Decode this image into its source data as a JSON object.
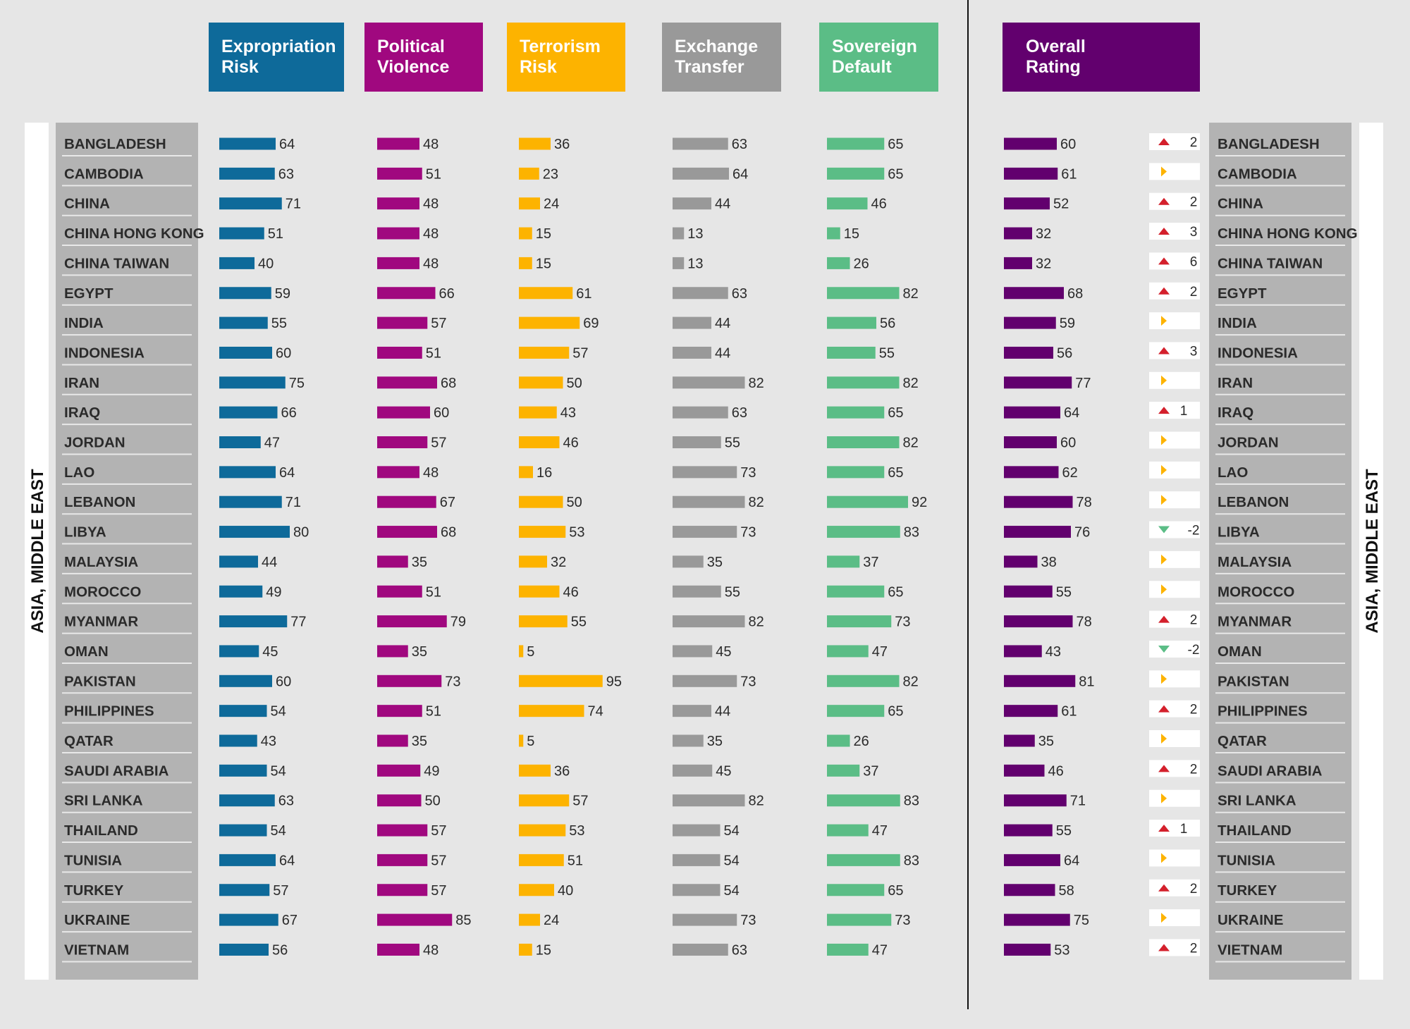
{
  "chart_data": {
    "type": "bar",
    "region_label": "ASIA, MIDDLE EAST",
    "categories": [
      "BANGLADESH",
      "CAMBODIA",
      "CHINA",
      "CHINA HONG KONG",
      "CHINA TAIWAN",
      "EGYPT",
      "INDIA",
      "INDONESIA",
      "IRAN",
      "IRAQ",
      "JORDAN",
      "LAO",
      "LEBANON",
      "LIBYA",
      "MALAYSIA",
      "MOROCCO",
      "MYANMAR",
      "OMAN",
      "PAKISTAN",
      "PHILIPPINES",
      "QATAR",
      "SAUDI ARABIA",
      "SRI LANKA",
      "THAILAND",
      "TUNISIA",
      "TURKEY",
      "UKRAINE",
      "VIETNAM"
    ],
    "series": [
      {
        "name": "Expropriation Risk",
        "header": [
          "Expropriation",
          "Risk"
        ],
        "color": "#0e6a9a",
        "header_text": "#ffffff",
        "values": [
          64,
          63,
          71,
          51,
          40,
          59,
          55,
          60,
          75,
          66,
          47,
          64,
          71,
          80,
          44,
          49,
          77,
          45,
          60,
          54,
          43,
          54,
          63,
          54,
          64,
          57,
          67,
          56
        ]
      },
      {
        "name": "Political Violence",
        "header": [
          "Political",
          "Violence"
        ],
        "color": "#a0087f",
        "header_text": "#ffffff",
        "values": [
          48,
          51,
          48,
          48,
          48,
          66,
          57,
          51,
          68,
          60,
          57,
          48,
          67,
          68,
          35,
          51,
          79,
          35,
          73,
          51,
          35,
          49,
          50,
          57,
          57,
          57,
          85,
          48
        ]
      },
      {
        "name": "Terrorism Risk",
        "header": [
          "Terrorism",
          "Risk"
        ],
        "color": "#fdb300",
        "header_text": "#111111",
        "values": [
          36,
          23,
          24,
          15,
          15,
          61,
          69,
          57,
          50,
          43,
          46,
          16,
          50,
          53,
          32,
          46,
          55,
          5,
          95,
          74,
          5,
          36,
          57,
          53,
          51,
          40,
          24,
          15
        ]
      },
      {
        "name": "Exchange Transfer",
        "header": [
          "Exchange",
          "Transfer"
        ],
        "color": "#999999",
        "header_text": "#ffffff",
        "values": [
          63,
          64,
          44,
          13,
          13,
          63,
          44,
          44,
          82,
          63,
          55,
          73,
          82,
          73,
          35,
          55,
          82,
          45,
          73,
          44,
          35,
          45,
          82,
          54,
          54,
          54,
          73,
          63
        ]
      },
      {
        "name": "Sovereign Default",
        "header": [
          "Sovereign",
          "Default"
        ],
        "color": "#5bbd86",
        "header_text": "#111111",
        "values": [
          65,
          65,
          46,
          15,
          26,
          82,
          56,
          55,
          82,
          65,
          82,
          65,
          92,
          83,
          37,
          65,
          73,
          47,
          82,
          65,
          26,
          37,
          83,
          47,
          83,
          65,
          73,
          47
        ]
      },
      {
        "name": "Overall Rating",
        "header": [
          "Overall",
          "Rating"
        ],
        "color": "#62006e",
        "header_text": "#ffffff",
        "values": [
          60,
          61,
          52,
          32,
          32,
          68,
          59,
          56,
          77,
          64,
          60,
          62,
          78,
          76,
          38,
          55,
          78,
          43,
          81,
          61,
          35,
          46,
          71,
          55,
          64,
          58,
          75,
          53
        ]
      }
    ],
    "change": {
      "values": [
        2,
        0,
        2,
        3,
        6,
        2,
        0,
        3,
        0,
        1,
        0,
        0,
        0,
        -2,
        0,
        0,
        2,
        -2,
        0,
        2,
        0,
        2,
        0,
        1,
        0,
        2,
        0,
        2
      ],
      "labels": [
        "2",
        "",
        "2",
        "3",
        "6",
        "2",
        "",
        "3",
        "",
        "1",
        "",
        "",
        "",
        "-2",
        "",
        "",
        "2",
        "-2",
        "",
        "2",
        "",
        "2",
        "",
        "1",
        "",
        "2",
        "",
        "2"
      ]
    },
    "colors": {
      "up": "#d4202c",
      "down": "#5bbd86",
      "flat": "#fdb300"
    }
  }
}
